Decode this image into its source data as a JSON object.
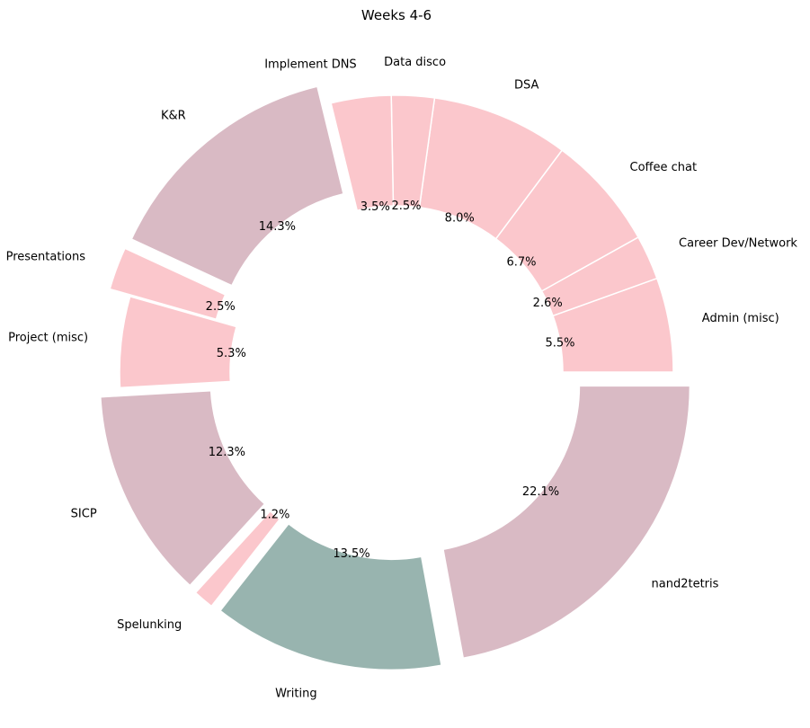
{
  "chart_data": {
    "type": "pie",
    "donut": true,
    "title": "Weeks 4-6",
    "start_angle_deg": 0,
    "direction": "counterclockwise",
    "slices": [
      {
        "label": "Admin (misc)",
        "value": 5.5,
        "pct_label": "5.5%",
        "color": "#fbc7cc",
        "exploded": false
      },
      {
        "label": "Career Dev/Network",
        "value": 2.6,
        "pct_label": "2.6%",
        "color": "#fbc7cc",
        "exploded": false
      },
      {
        "label": "Coffee chat",
        "value": 6.7,
        "pct_label": "6.7%",
        "color": "#fbc7cc",
        "exploded": false
      },
      {
        "label": "DSA",
        "value": 8.0,
        "pct_label": "8.0%",
        "color": "#fbc7cc",
        "exploded": false
      },
      {
        "label": "Data disco",
        "value": 2.5,
        "pct_label": "2.5%",
        "color": "#fbc7cc",
        "exploded": false
      },
      {
        "label": "Implement DNS",
        "value": 3.5,
        "pct_label": "3.5%",
        "color": "#fbc7cc",
        "exploded": false
      },
      {
        "label": "K&R",
        "value": 14.3,
        "pct_label": "14.3%",
        "color": "#d9bac4",
        "exploded": true
      },
      {
        "label": "Presentations",
        "value": 2.5,
        "pct_label": "2.5%",
        "color": "#fbc7cc",
        "exploded": true
      },
      {
        "label": "Project (misc)",
        "value": 5.3,
        "pct_label": "5.3%",
        "color": "#fbc7cc",
        "exploded": false
      },
      {
        "label": "SICP",
        "value": 12.3,
        "pct_label": "12.3%",
        "color": "#d9bac4",
        "exploded": true
      },
      {
        "label": "Spelunking",
        "value": 1.2,
        "pct_label": "1.2%",
        "color": "#fbc7cc",
        "exploded": true
      },
      {
        "label": "Writing",
        "value": 13.5,
        "pct_label": "13.5%",
        "color": "#98b4af",
        "exploded": true
      },
      {
        "label": "nand2tetris",
        "value": 22.1,
        "pct_label": "22.1%",
        "color": "#d9bac4",
        "exploded": true
      }
    ]
  }
}
